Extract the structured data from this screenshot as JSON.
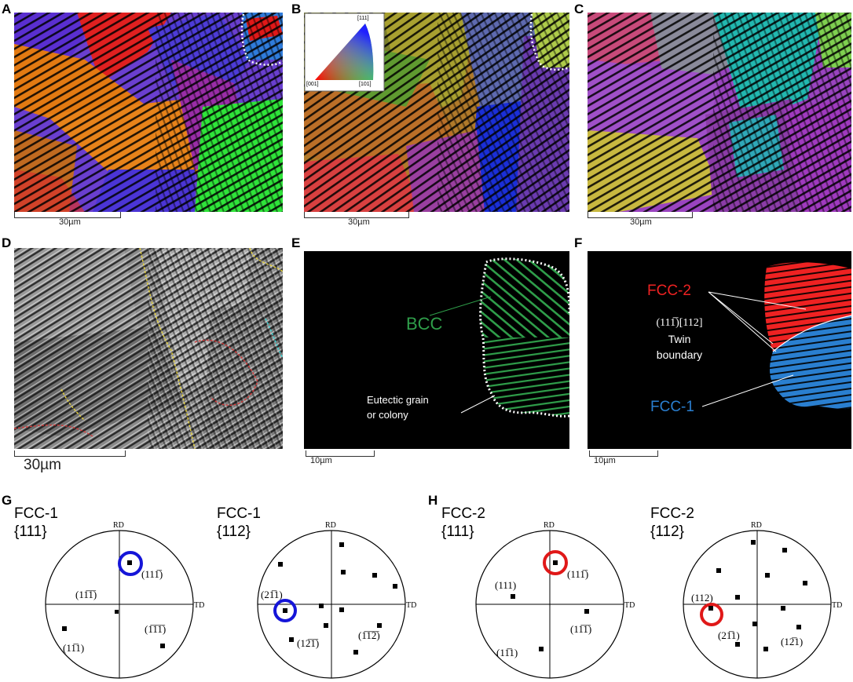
{
  "figure": {
    "panel_letters": [
      "A",
      "B",
      "C",
      "D",
      "E",
      "F",
      "G",
      "H"
    ],
    "scale_bars": {
      "A": "30µm",
      "B": "30µm",
      "C": "30µm",
      "D": "30µm",
      "E": "10µm",
      "F": "10µm"
    },
    "ipf_legend": {
      "top": "[111]",
      "bottom_left": "[001]",
      "bottom_right": "[101]"
    },
    "panel_e": {
      "phase_label": "BCC",
      "grain_label_line1": "Eutectic grain",
      "grain_label_line2": "or colony",
      "phase_color": "#2f9e4a"
    },
    "panel_f": {
      "fcc2_label": "FCC-2",
      "fcc1_label": "FCC-1",
      "twin_line1": "(11̅1̅)[112]",
      "twin_plane": "(111̅)[112]",
      "twin_line2": "Twin",
      "twin_line3": "boundary",
      "fcc2_color": "#ee2222",
      "fcc1_color": "#2a7fd0"
    },
    "pole_figures": [
      {
        "name": "FCC-1",
        "family": "{111}",
        "rd": "RD",
        "td": "TD",
        "labels": [
          {
            "text": "(111̅)",
            "plain": "(111̅)"
          },
          {
            "text": "(11̅1̅)",
            "plain": "(11̅1̅)"
          },
          {
            "text": "(1̅1̅1̅)",
            "plain": "(1̅1̅1̅)"
          },
          {
            "text": "(11̅1)",
            "plain": "(11̅1)"
          }
        ],
        "highlight_color": "#1515d8"
      },
      {
        "name": "FCC-1",
        "family": "{112}",
        "rd": "RD",
        "td": "TD",
        "labels": [
          {
            "text": "(21̅1)",
            "plain": "(21̅1)"
          },
          {
            "text": "(122̅1̅)",
            "plain": "(12̅1̅)"
          },
          {
            "text": "(1̅1̅2̅)",
            "plain": "(1̅1̅2̅)"
          }
        ],
        "highlight_color": "#1515d8"
      },
      {
        "name": "FCC-2",
        "family": "{111}",
        "rd": "RD",
        "td": "TD",
        "labels": [
          {
            "text": "(111̅)",
            "plain": "(111̅)"
          },
          {
            "text": "(111)",
            "plain": "(111)"
          },
          {
            "text": "(11̅1̅)",
            "plain": "(11̅1̅)"
          },
          {
            "text": "(11̅1)",
            "plain": "(11̅1)"
          }
        ],
        "highlight_color": "#e01818"
      },
      {
        "name": "FCC-2",
        "family": "{112}",
        "rd": "RD",
        "td": "TD",
        "labels": [
          {
            "text": "(112)",
            "plain": "(112)"
          },
          {
            "text": "(21̅1)",
            "plain": "(21̅1)"
          },
          {
            "text": "(122̅1)",
            "plain": "(12̅1)"
          }
        ],
        "highlight_color": "#e01818"
      }
    ]
  }
}
